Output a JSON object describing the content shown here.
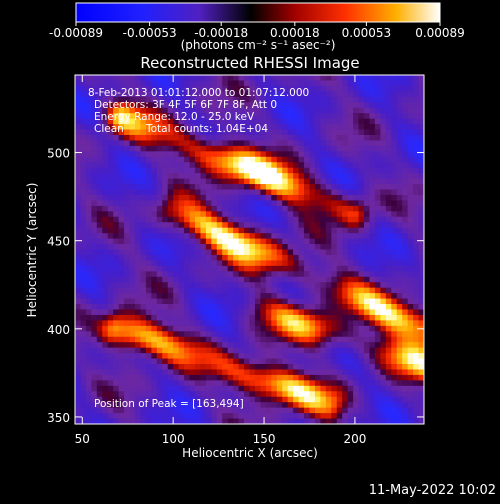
{
  "chart_data": {
    "type": "heatmap",
    "title": "Reconstructed RHESSI Image",
    "xlabel": "Heliocentric X (arcsec)",
    "ylabel": "Heliocentric Y (arcsec)",
    "xlim": [
      46,
      238
    ],
    "ylim": [
      346,
      544
    ],
    "xticks": [
      50,
      100,
      150,
      200
    ],
    "yticks": [
      350,
      400,
      450,
      500
    ],
    "colorbar": {
      "ticks": [
        -0.00089,
        -0.00053,
        -0.00018,
        0.00018,
        0.00053,
        0.00089
      ],
      "tick_labels": [
        "-0.00089",
        "-0.00053",
        "-0.00018",
        "0.00018",
        "0.00053",
        "0.00089"
      ],
      "unit_label": "(photons cm⁻² s⁻¹ asec⁻²)",
      "range": [
        -0.00089,
        0.00089
      ]
    },
    "annotations": {
      "time": "8-Feb-2013 01:01:12.000 to 01:07:12.000",
      "detectors": "Detectors: 3F 4F 5F 6F 7F 8F, Att 0",
      "energy": "Energy Range: 12.0 - 25.0 keV",
      "method": "Clean",
      "counts": "Total counts: 1.04E+04",
      "peak": "Position of Peak = [163,494]"
    },
    "peak": [
      163,
      494
    ],
    "bright_ridges": [
      {
        "from": [
          72,
          520
        ],
        "to": [
          200,
          466
        ],
        "peak_value": 0.00089
      },
      {
        "from": [
          100,
          466
        ],
        "to": [
          238,
          400
        ],
        "peak_value": 0.00075
      },
      {
        "from": [
          150,
          410
        ],
        "to": [
          238,
          380
        ],
        "peak_value": 0.0006
      },
      {
        "from": [
          70,
          400
        ],
        "to": [
          185,
          358
        ],
        "peak_value": 0.0008
      }
    ]
  },
  "footer": {
    "date": "11-May-2022 10:02"
  }
}
